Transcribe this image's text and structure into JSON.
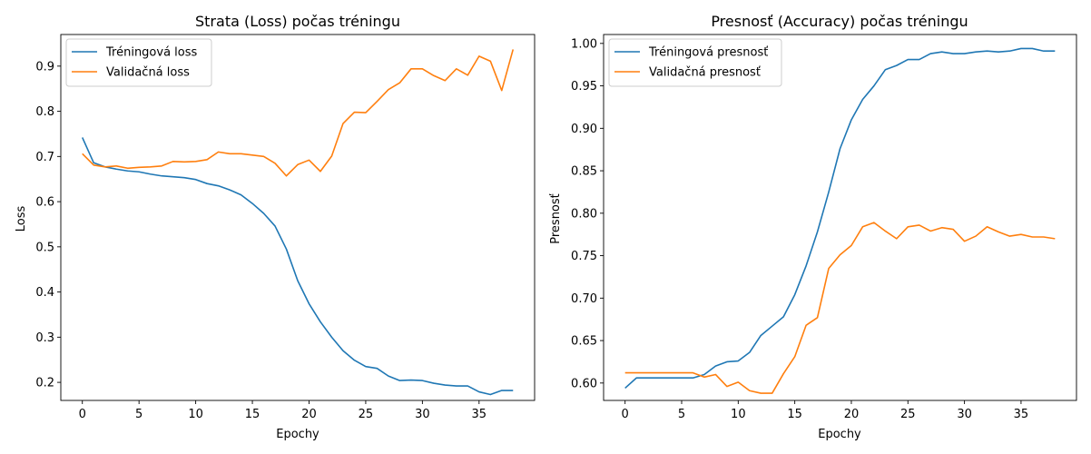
{
  "chart_data": [
    {
      "type": "line",
      "title": "Strata (Loss) počas tréningu",
      "xlabel": "Epochy",
      "ylabel": "Loss",
      "xlim": [
        -1.9,
        39.9
      ],
      "ylim": [
        0.16,
        0.97
      ],
      "xticks": [
        0,
        5,
        10,
        15,
        20,
        25,
        30,
        35
      ],
      "yticks": [
        0.2,
        0.3,
        0.4,
        0.5,
        0.6,
        0.7,
        0.8,
        0.9
      ],
      "ytick_labels": [
        "0.2",
        "0.3",
        "0.4",
        "0.5",
        "0.6",
        "0.7",
        "0.8",
        "0.9"
      ],
      "grid": false,
      "legend": "upper left",
      "x": [
        0,
        1,
        2,
        3,
        4,
        5,
        6,
        7,
        8,
        9,
        10,
        11,
        12,
        13,
        14,
        15,
        16,
        17,
        18,
        19,
        20,
        21,
        22,
        23,
        24,
        25,
        26,
        27,
        28,
        29,
        30,
        31,
        32,
        33,
        34,
        35,
        36,
        37,
        38
      ],
      "series": [
        {
          "name": "Tréningová loss",
          "color": "#1f77b4",
          "values": [
            0.742,
            0.686,
            0.677,
            0.672,
            0.668,
            0.666,
            0.661,
            0.657,
            0.655,
            0.653,
            0.649,
            0.64,
            0.635,
            0.626,
            0.615,
            0.596,
            0.574,
            0.546,
            0.495,
            0.425,
            0.374,
            0.334,
            0.3,
            0.27,
            0.249,
            0.235,
            0.231,
            0.214,
            0.204,
            0.205,
            0.204,
            0.198,
            0.194,
            0.192,
            0.192,
            0.179,
            0.173,
            0.182,
            0.182
          ]
        },
        {
          "name": "Validačná loss",
          "color": "#ff7f0e",
          "values": [
            0.706,
            0.681,
            0.677,
            0.679,
            0.674,
            0.676,
            0.677,
            0.679,
            0.689,
            0.688,
            0.689,
            0.693,
            0.71,
            0.706,
            0.706,
            0.703,
            0.7,
            0.685,
            0.657,
            0.682,
            0.692,
            0.667,
            0.701,
            0.773,
            0.798,
            0.797,
            0.822,
            0.848,
            0.863,
            0.894,
            0.894,
            0.879,
            0.868,
            0.894,
            0.88,
            0.922,
            0.911,
            0.846,
            0.937
          ]
        }
      ]
    },
    {
      "type": "line",
      "title": "Presnosť (Accuracy) počas tréningu",
      "xlabel": "Epochy",
      "ylabel": "Presnosť",
      "xlim": [
        -1.9,
        39.9
      ],
      "ylim": [
        0.5795,
        1.0105
      ],
      "xticks": [
        0,
        5,
        10,
        15,
        20,
        25,
        30,
        35
      ],
      "yticks": [
        0.6,
        0.65,
        0.7,
        0.75,
        0.8,
        0.85,
        0.9,
        0.95,
        1.0
      ],
      "ytick_labels": [
        "0.60",
        "0.65",
        "0.70",
        "0.75",
        "0.80",
        "0.85",
        "0.90",
        "0.95",
        "1.00"
      ],
      "grid": false,
      "legend": "upper left",
      "x": [
        0,
        1,
        2,
        3,
        4,
        5,
        6,
        7,
        8,
        9,
        10,
        11,
        12,
        13,
        14,
        15,
        16,
        17,
        18,
        19,
        20,
        21,
        22,
        23,
        24,
        25,
        26,
        27,
        28,
        29,
        30,
        31,
        32,
        33,
        34,
        35,
        36,
        37,
        38
      ],
      "series": [
        {
          "name": "Tréningová presnosť",
          "color": "#1f77b4",
          "values": [
            0.594,
            0.606,
            0.606,
            0.606,
            0.606,
            0.606,
            0.606,
            0.61,
            0.62,
            0.625,
            0.626,
            0.636,
            0.656,
            0.667,
            0.678,
            0.704,
            0.738,
            0.778,
            0.825,
            0.876,
            0.91,
            0.934,
            0.95,
            0.969,
            0.974,
            0.981,
            0.981,
            0.988,
            0.99,
            0.988,
            0.988,
            0.99,
            0.991,
            0.99,
            0.991,
            0.994,
            0.994,
            0.991,
            0.991
          ]
        },
        {
          "name": "Validačná presnosť",
          "color": "#ff7f0e",
          "values": [
            0.612,
            0.612,
            0.612,
            0.612,
            0.612,
            0.612,
            0.612,
            0.607,
            0.61,
            0.596,
            0.601,
            0.591,
            0.588,
            0.588,
            0.611,
            0.631,
            0.668,
            0.677,
            0.735,
            0.751,
            0.762,
            0.784,
            0.789,
            0.779,
            0.77,
            0.784,
            0.786,
            0.779,
            0.783,
            0.781,
            0.767,
            0.773,
            0.784,
            0.778,
            0.773,
            0.775,
            0.772,
            0.772,
            0.77
          ]
        }
      ]
    }
  ]
}
